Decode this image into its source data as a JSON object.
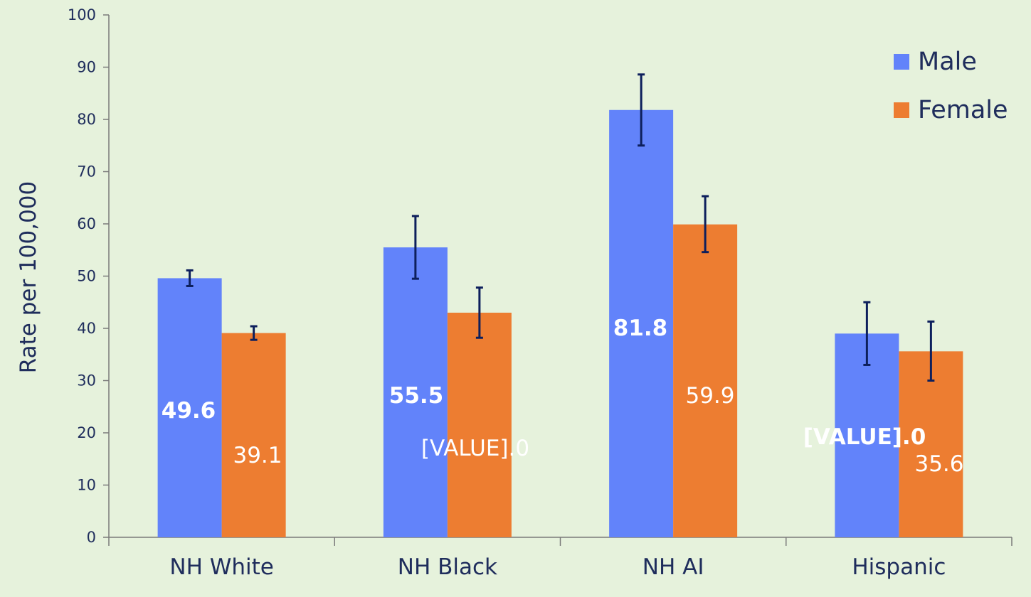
{
  "chart_data": {
    "type": "bar",
    "title": "",
    "xlabel": "",
    "ylabel": "Rate per 100,000",
    "ylim": [
      0,
      100
    ],
    "yticks": [
      0,
      10,
      20,
      30,
      40,
      50,
      60,
      70,
      80,
      90,
      100
    ],
    "grid": false,
    "legend_position": "top-right",
    "categories": [
      "NH White",
      "NH Black",
      "NH AI",
      "Hispanic"
    ],
    "series": [
      {
        "name": "Male",
        "color": "#6283fa",
        "values": [
          49.6,
          55.5,
          81.8,
          39.0
        ],
        "error_low": [
          48.1,
          49.5,
          75.0,
          33.0
        ],
        "error_high": [
          51.1,
          61.5,
          88.6,
          45.0
        ],
        "data_labels": [
          "49.6",
          "55.5",
          "81.8",
          "[VALUE].0"
        ],
        "label_bold": true
      },
      {
        "name": "Female",
        "color": "#ed7d31",
        "values": [
          39.1,
          43.0,
          59.9,
          35.6
        ],
        "error_low": [
          37.8,
          38.2,
          54.6,
          30.0
        ],
        "error_high": [
          40.4,
          47.8,
          65.3,
          41.3
        ],
        "data_labels": [
          "39.1",
          "[VALUE].0",
          "59.9",
          "35.6"
        ],
        "label_bold": false
      }
    ],
    "error_bar_color": "#0d1f5c",
    "axis_color": "#7a7a7a"
  }
}
